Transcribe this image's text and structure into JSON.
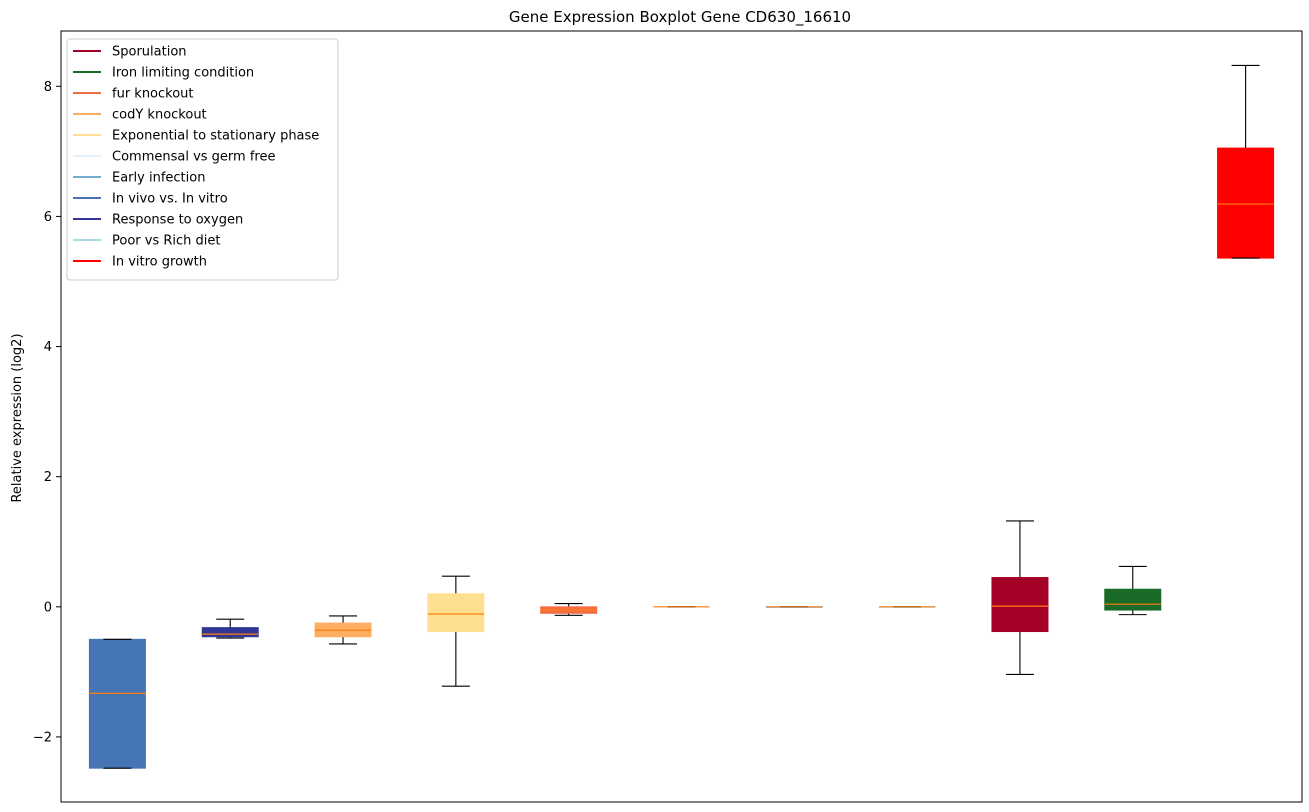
{
  "chart_data": {
    "type": "boxplot",
    "title": "Gene Expression Boxplot Gene CD630_16610",
    "xlabel": "",
    "ylabel": "Relative expression (log2)",
    "ylim": [
      -3.0,
      8.85
    ],
    "yticks": [
      {
        "value": -2,
        "label": "−2"
      },
      {
        "value": 0,
        "label": "0"
      },
      {
        "value": 2,
        "label": "2"
      },
      {
        "value": 4,
        "label": "4"
      },
      {
        "value": 6,
        "label": "6"
      },
      {
        "value": 8,
        "label": "8"
      }
    ],
    "grid": false,
    "legend_position": "top-left",
    "median_color": "#ff7f0e",
    "legend": [
      {
        "label": "Sporulation",
        "color": "#a50026"
      },
      {
        "label": "Iron limiting condition",
        "color": "#1a6b27"
      },
      {
        "label": "fur knockout",
        "color": "#f46d43"
      },
      {
        "label": "codY knockout",
        "color": "#fdae61"
      },
      {
        "label": "Exponential to stationary phase",
        "color": "#fee090"
      },
      {
        "label": "Commensal vs germ free",
        "color": "#e0f3f8"
      },
      {
        "label": "Early infection",
        "color": "#74add1"
      },
      {
        "label": "In vivo vs. In vitro",
        "color": "#4575b4"
      },
      {
        "label": "Response to oxygen",
        "color": "#313695"
      },
      {
        "label": "Poor vs Rich diet",
        "color": "#abd9e9"
      },
      {
        "label": "In vitro growth",
        "color": "#ff0000"
      }
    ],
    "boxes": [
      {
        "position": 1,
        "color": "#4575b4",
        "whislo": -2.48,
        "q1": -2.48,
        "median": -1.33,
        "q3": -0.5,
        "whishi": -0.5
      },
      {
        "position": 2,
        "color": "#313695",
        "whislo": -0.48,
        "q1": -0.46,
        "median": -0.42,
        "q3": -0.32,
        "whishi": -0.19
      },
      {
        "position": 3,
        "color": "#fdae61",
        "whislo": -0.57,
        "q1": -0.46,
        "median": -0.36,
        "q3": -0.25,
        "whishi": -0.14
      },
      {
        "position": 4,
        "color": "#fee090",
        "whislo": -1.22,
        "q1": -0.38,
        "median": -0.11,
        "q3": 0.2,
        "whishi": 0.47
      },
      {
        "position": 5,
        "color": "#f46d43",
        "whislo": -0.13,
        "q1": -0.1,
        "median": -0.05,
        "q3": 0.0,
        "whishi": 0.05
      },
      {
        "position": 6,
        "color": "#e0f3f8",
        "whislo": 0.0,
        "q1": 0.0,
        "median": 0.0,
        "q3": 0.0,
        "whishi": 0.0
      },
      {
        "position": 7,
        "color": "#74add1",
        "whislo": 0.0,
        "q1": 0.0,
        "median": 0.0,
        "q3": 0.0,
        "whishi": 0.0
      },
      {
        "position": 8,
        "color": "#abd9e9",
        "whislo": 0.0,
        "q1": 0.0,
        "median": 0.0,
        "q3": 0.0,
        "whishi": 0.0
      },
      {
        "position": 9,
        "color": "#a50026",
        "whislo": -1.04,
        "q1": -0.38,
        "median": 0.01,
        "q3": 0.45,
        "whishi": 1.32
      },
      {
        "position": 10,
        "color": "#1a6b27",
        "whislo": -0.12,
        "q1": -0.05,
        "median": 0.04,
        "q3": 0.27,
        "whishi": 0.62
      },
      {
        "position": 11,
        "color": "#ff0000",
        "whislo": 5.36,
        "q1": 5.36,
        "median": 6.19,
        "q3": 7.05,
        "whishi": 8.32
      }
    ],
    "xlim": [
      0.5,
      11.5
    ]
  }
}
